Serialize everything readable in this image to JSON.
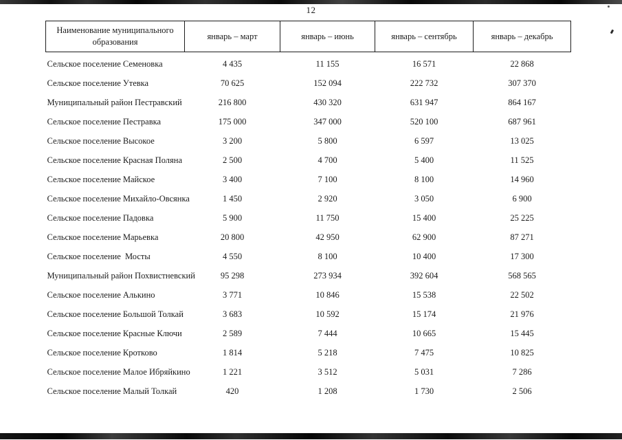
{
  "page": {
    "number": "12"
  },
  "colors": {
    "ink": "#1b1b1b",
    "paper": "#ffffff",
    "border": "#1c1c1c"
  },
  "table": {
    "columns": [
      "Наименование муниципального образования",
      "январь – март",
      "январь – июнь",
      "январь – сентябрь",
      "январь – декабрь"
    ],
    "rows": [
      {
        "name": "Сельское поселение Семеновка",
        "values": [
          "4 435",
          "11 155",
          "16 571",
          "22 868"
        ]
      },
      {
        "name": "Сельское поселение Утевка",
        "values": [
          "70 625",
          "152 094",
          "222 732",
          "307 370"
        ]
      },
      {
        "name": "Муниципальный район Пестравский",
        "values": [
          "216 800",
          "430 320",
          "631 947",
          "864 167"
        ]
      },
      {
        "name": "Сельское поселение Пестравка",
        "values": [
          "175 000",
          "347 000",
          "520 100",
          "687 961"
        ]
      },
      {
        "name": "Сельское поселение Высокое",
        "values": [
          "3 200",
          "5 800",
          "6 597",
          "13 025"
        ]
      },
      {
        "name": "Сельское поселение Красная Поляна",
        "values": [
          "2 500",
          "4 700",
          "5 400",
          "11 525"
        ]
      },
      {
        "name": "Сельское поселение Майское",
        "values": [
          "3 400",
          "7 100",
          "8 100",
          "14 960"
        ]
      },
      {
        "name": "Сельское поселение Михайло-Овсянка",
        "values": [
          "1 450",
          "2 920",
          "3 050",
          "6 900"
        ]
      },
      {
        "name": "Сельское поселение Падовка",
        "values": [
          "5 900",
          "11 750",
          "15 400",
          "25 225"
        ]
      },
      {
        "name": "Сельское поселение Марьевка",
        "values": [
          "20 800",
          "42 950",
          "62 900",
          "87 271"
        ]
      },
      {
        "name": "Сельское поселение  Мосты",
        "values": [
          "4 550",
          "8 100",
          "10 400",
          "17 300"
        ]
      },
      {
        "name": "Муниципальный район Похвистневский",
        "values": [
          "95 298",
          "273 934",
          "392 604",
          "568 565"
        ]
      },
      {
        "name": "Сельское поселение Алькино",
        "values": [
          "3 771",
          "10 846",
          "15 538",
          "22 502"
        ]
      },
      {
        "name": "Сельское поселение Большой Толкай",
        "values": [
          "3 683",
          "10 592",
          "15 174",
          "21 976"
        ]
      },
      {
        "name": "Сельское поселение Красные Ключи",
        "values": [
          "2 589",
          "7 444",
          "10 665",
          "15 445"
        ]
      },
      {
        "name": "Сельское поселение Кротково",
        "values": [
          "1 814",
          "5 218",
          "7 475",
          "10 825"
        ]
      },
      {
        "name": "Сельское поселение Малое Ибряйкино",
        "values": [
          "1 221",
          "3 512",
          "5 031",
          "7 286"
        ]
      },
      {
        "name": "Сельское поселение Малый Толкай",
        "values": [
          "420",
          "1 208",
          "1 730",
          "2 506"
        ]
      }
    ]
  }
}
